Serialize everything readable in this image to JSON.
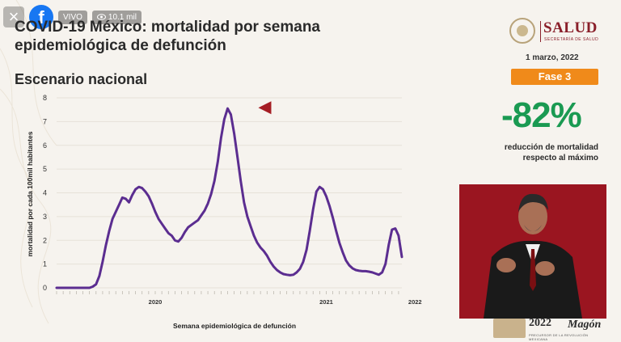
{
  "overlay": {
    "close_icon": "×",
    "facebook_icon": "f",
    "live_label": "VIVO",
    "viewers": "10.1 mil"
  },
  "slide": {
    "title": "COVID-19 México: mortalidad por semana epidemiológica de defunción",
    "subtitle": "Escenario nacional",
    "brand": "SALUD",
    "brand_sub": "SECRETARÍA DE SALUD",
    "date": "1 marzo, 2022",
    "phase": "Fase 3",
    "reduction_value": "-82%",
    "reduction_text": "reducción de mortalidad respecto al máximo",
    "footer_year": "2022",
    "footer_name": "Magón",
    "footer_caption": "PRECURSOR DE LA REVOLUCIÓN MEXICANA"
  },
  "colors": {
    "line": "#5b2d90",
    "max_marker": "#a51d24",
    "current_marker": "#1a9a52",
    "phase_bg": "#f08a1a",
    "reduction": "#1a9a52"
  },
  "chart_data": {
    "type": "line",
    "xlabel": "Semana epidemiológica de defunción",
    "ylabel": "mortalidad por cada 100mil habitantes",
    "ylim": [
      0,
      8
    ],
    "yticks": [
      0,
      1,
      2,
      3,
      4,
      5,
      6,
      7,
      8
    ],
    "year_labels": [
      {
        "label": "2020",
        "at_week": 30
      },
      {
        "label": "2021",
        "at_week": 82
      },
      {
        "label": "2022",
        "at_week": 109
      }
    ],
    "grid": true,
    "series": [
      {
        "values": [
          0,
          0,
          0,
          0,
          0,
          0,
          0,
          0,
          0,
          0,
          0,
          0.05,
          0.15,
          0.5,
          1.1,
          1.8,
          2.4,
          2.9,
          3.2,
          3.5,
          3.8,
          3.75,
          3.6,
          3.9,
          4.15,
          4.25,
          4.2,
          4.05,
          3.85,
          3.55,
          3.2,
          2.9,
          2.7,
          2.5,
          2.3,
          2.2,
          2.0,
          1.95,
          2.1,
          2.35,
          2.55,
          2.65,
          2.75,
          2.85,
          3.05,
          3.25,
          3.55,
          3.95,
          4.5,
          5.3,
          6.3,
          7.1,
          7.55,
          7.3,
          6.5,
          5.5,
          4.5,
          3.6,
          3.0,
          2.6,
          2.2,
          1.9,
          1.7,
          1.55,
          1.35,
          1.1,
          0.9,
          0.75,
          0.65,
          0.58,
          0.55,
          0.53,
          0.55,
          0.65,
          0.8,
          1.1,
          1.6,
          2.4,
          3.3,
          4.05,
          4.25,
          4.15,
          3.85,
          3.45,
          2.95,
          2.4,
          1.9,
          1.5,
          1.15,
          0.95,
          0.82,
          0.75,
          0.72,
          0.7,
          0.7,
          0.68,
          0.65,
          0.6,
          0.55,
          0.65,
          1.0,
          1.8,
          2.45,
          2.5,
          2.2,
          1.3
        ],
        "max_marker_week": 52,
        "current_week": 106
      }
    ]
  }
}
